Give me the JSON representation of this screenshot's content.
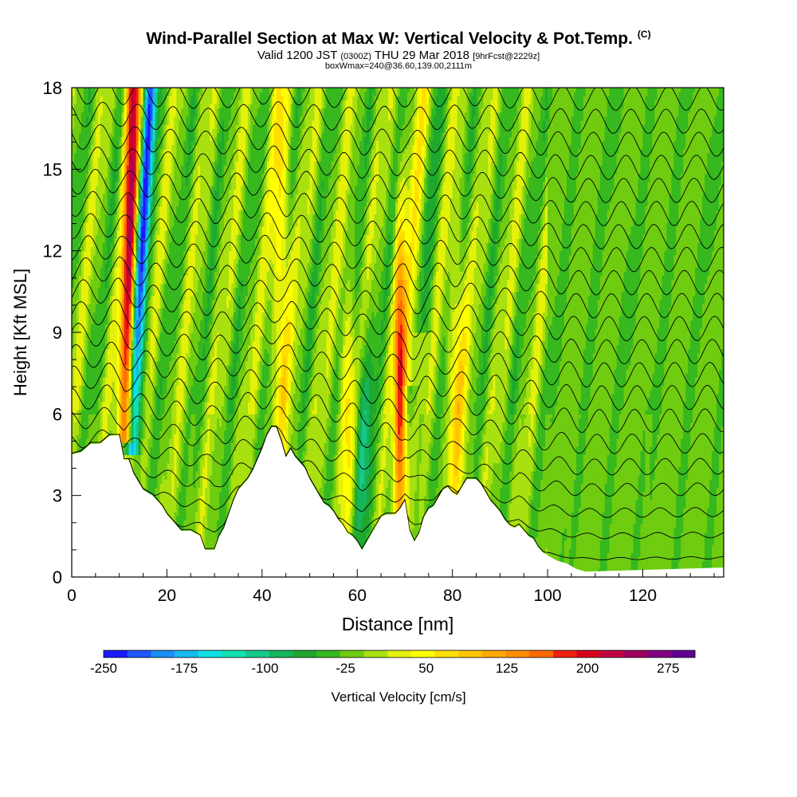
{
  "title": {
    "main": "Wind-Parallel Section at Max W: Vertical Velocity & Pot.Temp.",
    "corner": "(C)",
    "valid_prefix": "Valid 1200 JST",
    "utc": "(0300Z)",
    "date": "THU 29 Mar 2018",
    "fcst": "[9hrFcst@2229z]",
    "box": "boxWmax=240@36.60,139.00,2111m"
  },
  "chart_data": {
    "type": "heatmap",
    "xlabel": "Distance [nm]",
    "ylabel": "Height [Kft MSL]",
    "xlim": [
      0,
      137
    ],
    "ylim": [
      0,
      18
    ],
    "x_ticks": [
      0,
      20,
      40,
      60,
      80,
      100,
      120
    ],
    "y_ticks": [
      0,
      3,
      6,
      9,
      12,
      15,
      18
    ],
    "colorbar": {
      "label": "Vertical Velocity [cm/s]",
      "tick_labels": [
        "-250",
        "-175",
        "-100",
        "-25",
        "50",
        "125",
        "200",
        "275"
      ],
      "min": -250,
      "max": 300,
      "step": 25,
      "colors": [
        "#1a1aff",
        "#1f55ff",
        "#1b8df5",
        "#19b8f0",
        "#10e0e6",
        "#12e0b0",
        "#17c98a",
        "#16b55c",
        "#1fa82e",
        "#36b81e",
        "#6fcc10",
        "#a8e010",
        "#e6f10a",
        "#ffff00",
        "#ffdf00",
        "#ffc400",
        "#ffa800",
        "#ff8c00",
        "#ff6a00",
        "#f02010",
        "#d8001e",
        "#c00040",
        "#a00060",
        "#800080",
        "#600090"
      ]
    },
    "extrema": [
      {
        "label": "updraft",
        "x": 11.5,
        "value": 250
      },
      {
        "label": "downdraft",
        "x": 13.5,
        "value": -200
      },
      {
        "label": "updraft",
        "x": 69,
        "value": 200
      },
      {
        "label": "updraft",
        "x": 58,
        "value": 100
      },
      {
        "label": "updraft",
        "x": 81,
        "value": 100
      },
      {
        "label": "updraft",
        "x": 44,
        "value": 90
      },
      {
        "label": "updraft",
        "x": 72,
        "value": 90
      }
    ],
    "theta_contour_interval_K": 1,
    "terrain_kft": [
      [
        0,
        4.5
      ],
      [
        2,
        4.6
      ],
      [
        4,
        4.9
      ],
      [
        6,
        4.9
      ],
      [
        8,
        5.2
      ],
      [
        10,
        5.2
      ],
      [
        11,
        4.3
      ],
      [
        12,
        4.3
      ],
      [
        13,
        3.8
      ],
      [
        14,
        3.5
      ],
      [
        15,
        3.2
      ],
      [
        16,
        3.1
      ],
      [
        17,
        3.0
      ],
      [
        18,
        2.8
      ],
      [
        19,
        2.6
      ],
      [
        20,
        2.3
      ],
      [
        21,
        2.1
      ],
      [
        22,
        1.9
      ],
      [
        23,
        1.7
      ],
      [
        25,
        1.7
      ],
      [
        27,
        1.5
      ],
      [
        28,
        1.0
      ],
      [
        30,
        1.0
      ],
      [
        31,
        1.5
      ],
      [
        32,
        1.8
      ],
      [
        33,
        2.3
      ],
      [
        34,
        2.8
      ],
      [
        35,
        3.2
      ],
      [
        36,
        3.4
      ],
      [
        37,
        3.6
      ],
      [
        38,
        3.9
      ],
      [
        39,
        4.3
      ],
      [
        40,
        4.7
      ],
      [
        41,
        5.2
      ],
      [
        42,
        5.5
      ],
      [
        43,
        5.5
      ],
      [
        44,
        5.0
      ],
      [
        45,
        4.4
      ],
      [
        46,
        4.7
      ],
      [
        47,
        4.4
      ],
      [
        48,
        4.2
      ],
      [
        49,
        4.0
      ],
      [
        50,
        3.6
      ],
      [
        51,
        3.3
      ],
      [
        52,
        3.0
      ],
      [
        53,
        2.7
      ],
      [
        54,
        2.6
      ],
      [
        55,
        2.4
      ],
      [
        56,
        2.1
      ],
      [
        57,
        1.9
      ],
      [
        58,
        1.6
      ],
      [
        59,
        1.5
      ],
      [
        60,
        1.3
      ],
      [
        61,
        1.0
      ],
      [
        62,
        1.3
      ],
      [
        63,
        1.6
      ],
      [
        64,
        1.9
      ],
      [
        65,
        2.2
      ],
      [
        66,
        2.3
      ],
      [
        68,
        2.3
      ],
      [
        69,
        2.5
      ],
      [
        70,
        2.8
      ],
      [
        71,
        1.7
      ],
      [
        72,
        1.3
      ],
      [
        73,
        1.6
      ],
      [
        74,
        2.2
      ],
      [
        75,
        2.5
      ],
      [
        76,
        2.6
      ],
      [
        77,
        2.9
      ],
      [
        78,
        3.2
      ],
      [
        79,
        3.3
      ],
      [
        80,
        3.1
      ],
      [
        81,
        3.0
      ],
      [
        82,
        3.3
      ],
      [
        83,
        3.6
      ],
      [
        85,
        3.6
      ],
      [
        86,
        3.4
      ],
      [
        87,
        3.1
      ],
      [
        88,
        2.8
      ],
      [
        89,
        2.6
      ],
      [
        90,
        2.4
      ],
      [
        91,
        2.1
      ],
      [
        92,
        1.9
      ],
      [
        93,
        1.8
      ],
      [
        94,
        1.9
      ],
      [
        95,
        1.7
      ],
      [
        96,
        1.5
      ],
      [
        97,
        1.4
      ],
      [
        98,
        1.1
      ],
      [
        99,
        0.9
      ],
      [
        100,
        0.8
      ],
      [
        101,
        0.7
      ],
      [
        102,
        0.6
      ],
      [
        104,
        0.5
      ],
      [
        105,
        0.4
      ],
      [
        106,
        0.3
      ],
      [
        108,
        0.2
      ],
      [
        137,
        0.35
      ]
    ]
  }
}
